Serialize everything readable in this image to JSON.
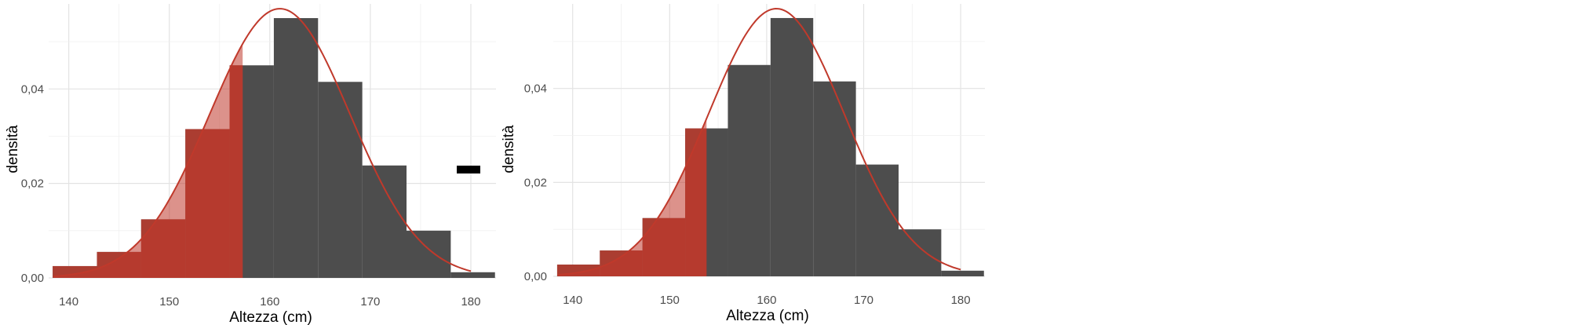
{
  "chart_data": [
    {
      "type": "bar",
      "subtype": "histogram",
      "xlabel": "Altezza (cm)",
      "ylabel": "densità",
      "xlim": [
        138,
        182.5
      ],
      "ylim": [
        0,
        0.058
      ],
      "xticks": [
        140,
        150,
        160,
        170,
        180
      ],
      "xtick_labels": [
        "140",
        "150",
        "160",
        "170",
        "180"
      ],
      "yticks": [
        0,
        0.02,
        0.04
      ],
      "ytick_labels": [
        "0,00",
        "0,02",
        "0,04"
      ],
      "grid": true,
      "colors": {
        "bars": "#4d4d4d",
        "shade": "#c0392b",
        "curve": "#c0392b"
      },
      "bins": [
        {
          "x0": 138.4,
          "x1": 142.8,
          "density": 0.0025
        },
        {
          "x0": 142.8,
          "x1": 147.2,
          "density": 0.0055
        },
        {
          "x0": 147.2,
          "x1": 151.6,
          "density": 0.0124
        },
        {
          "x0": 151.6,
          "x1": 156.0,
          "density": 0.0315
        },
        {
          "x0": 156.0,
          "x1": 160.4,
          "density": 0.045
        },
        {
          "x0": 160.4,
          "x1": 164.8,
          "density": 0.055
        },
        {
          "x0": 164.8,
          "x1": 169.2,
          "density": 0.0415
        },
        {
          "x0": 169.2,
          "x1": 173.6,
          "density": 0.0238
        },
        {
          "x0": 173.6,
          "x1": 178.0,
          "density": 0.01
        },
        {
          "x0": 178.0,
          "x1": 182.4,
          "density": 0.0012
        }
      ],
      "normal_curve": {
        "mean": 161.0,
        "sd": 7.0,
        "x_range": [
          138.5,
          180
        ]
      },
      "shaded_below": 157.3
    },
    {
      "type": "bar",
      "subtype": "histogram",
      "xlabel": "Altezza (cm)",
      "ylabel": "densità",
      "xlim": [
        138,
        182.5
      ],
      "ylim": [
        0,
        0.058
      ],
      "xticks": [
        140,
        150,
        160,
        170,
        180
      ],
      "xtick_labels": [
        "140",
        "150",
        "160",
        "170",
        "180"
      ],
      "yticks": [
        0,
        0.02,
        0.04
      ],
      "ytick_labels": [
        "0,00",
        "0,02",
        "0,04"
      ],
      "grid": true,
      "colors": {
        "bars": "#4d4d4d",
        "shade": "#c0392b",
        "curve": "#c0392b"
      },
      "bins": [
        {
          "x0": 138.4,
          "x1": 142.8,
          "density": 0.0025
        },
        {
          "x0": 142.8,
          "x1": 147.2,
          "density": 0.0055
        },
        {
          "x0": 147.2,
          "x1": 151.6,
          "density": 0.0124
        },
        {
          "x0": 151.6,
          "x1": 156.0,
          "density": 0.0315
        },
        {
          "x0": 156.0,
          "x1": 160.4,
          "density": 0.045
        },
        {
          "x0": 160.4,
          "x1": 164.8,
          "density": 0.055
        },
        {
          "x0": 164.8,
          "x1": 169.2,
          "density": 0.0415
        },
        {
          "x0": 169.2,
          "x1": 173.6,
          "density": 0.0238
        },
        {
          "x0": 173.6,
          "x1": 178.0,
          "density": 0.01
        },
        {
          "x0": 178.0,
          "x1": 182.4,
          "density": 0.0012
        }
      ],
      "normal_curve": {
        "mean": 161.0,
        "sd": 7.0,
        "x_range": [
          138.5,
          180
        ]
      },
      "shaded_below": 153.8
    }
  ]
}
